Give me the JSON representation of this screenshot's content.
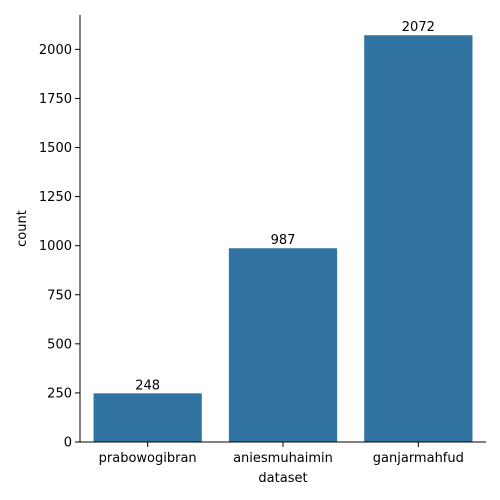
{
  "chart_data": {
    "type": "bar",
    "title": "",
    "xlabel": "dataset",
    "ylabel": "count",
    "categories": [
      "prabowogibran",
      "aniesmuhaimin",
      "ganjarmahfud"
    ],
    "values": [
      248,
      987,
      2072
    ],
    "data_labels": [
      "248",
      "987",
      "2072"
    ],
    "ylim": [
      0,
      2175
    ],
    "yticks": [
      0,
      250,
      500,
      750,
      1000,
      1250,
      1500,
      1750,
      2000
    ],
    "ytick_labels": [
      "0",
      "250",
      "500",
      "750",
      "1000",
      "1250",
      "1500",
      "1750",
      "2000"
    ],
    "grid": false,
    "bar_color": "#3274a1",
    "axis_color": "#000000"
  }
}
